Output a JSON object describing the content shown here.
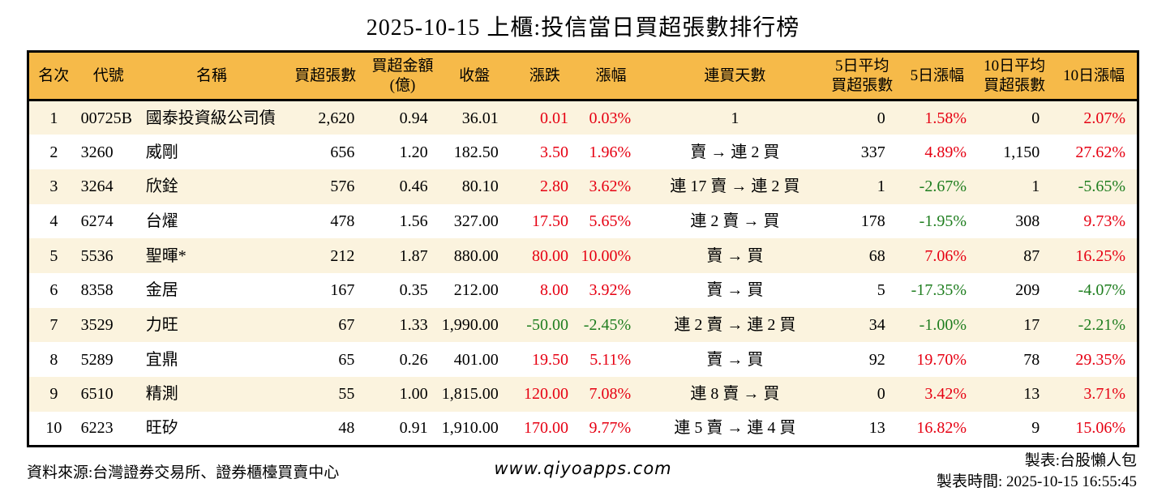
{
  "title": "2025-10-15 上櫃:投信當日買超張數排行榜",
  "colors": {
    "header_bg": "#F6BA49",
    "row_alt_bg": "#FBF3DE",
    "up_red": "#E60012",
    "down_green": "#1E7D1E",
    "border": "#000000"
  },
  "chart_data": {
    "type": "table",
    "title": "2025-10-15 上櫃:投信當日買超張數排行榜",
    "columns": [
      "名次",
      "代號",
      "名稱",
      "買超張數",
      "買超金額\n(億)",
      "收盤",
      "漲跌",
      "漲幅",
      "連買天數",
      "5日平均\n買超張數",
      "5日漲幅",
      "10日平均\n買超張數",
      "10日漲幅"
    ],
    "column_keys": [
      "rank",
      "code",
      "name",
      "buy-volume",
      "buy-amount",
      "close",
      "change",
      "change-pct",
      "buy-streak",
      "avg5-volume",
      "pct5",
      "avg10-volume",
      "pct10"
    ],
    "rows": [
      [
        "1",
        "00725B",
        "國泰投資級公司債",
        "2,620",
        "0.94",
        "36.01",
        "0.01",
        "0.03%",
        "1",
        "0",
        "1.58%",
        "0",
        "2.07%"
      ],
      [
        "2",
        "3260",
        "威剛",
        "656",
        "1.20",
        "182.50",
        "3.50",
        "1.96%",
        "賣 → 連 2 買",
        "337",
        "4.89%",
        "1,150",
        "27.62%"
      ],
      [
        "3",
        "3264",
        "欣銓",
        "576",
        "0.46",
        "80.10",
        "2.80",
        "3.62%",
        "連 17 賣 → 連 2 買",
        "1",
        "-2.67%",
        "1",
        "-5.65%"
      ],
      [
        "4",
        "6274",
        "台燿",
        "478",
        "1.56",
        "327.00",
        "17.50",
        "5.65%",
        "連 2 賣 → 買",
        "178",
        "-1.95%",
        "308",
        "9.73%"
      ],
      [
        "5",
        "5536",
        "聖暉*",
        "212",
        "1.87",
        "880.00",
        "80.00",
        "10.00%",
        "賣 → 買",
        "68",
        "7.06%",
        "87",
        "16.25%"
      ],
      [
        "6",
        "8358",
        "金居",
        "167",
        "0.35",
        "212.00",
        "8.00",
        "3.92%",
        "賣 → 買",
        "5",
        "-17.35%",
        "209",
        "-4.07%"
      ],
      [
        "7",
        "3529",
        "力旺",
        "67",
        "1.33",
        "1,990.00",
        "-50.00",
        "-2.45%",
        "連 2 賣 → 連 2 買",
        "34",
        "-1.00%",
        "17",
        "-2.21%"
      ],
      [
        "8",
        "5289",
        "宜鼎",
        "65",
        "0.26",
        "401.00",
        "19.50",
        "5.11%",
        "賣 → 買",
        "92",
        "19.70%",
        "78",
        "29.35%"
      ],
      [
        "9",
        "6510",
        "精測",
        "55",
        "1.00",
        "1,815.00",
        "120.00",
        "7.08%",
        "連 8 賣 → 買",
        "0",
        "3.42%",
        "13",
        "3.71%"
      ],
      [
        "10",
        "6223",
        "旺矽",
        "48",
        "0.91",
        "1,910.00",
        "170.00",
        "9.77%",
        "連 5 賣 → 連 4 買",
        "13",
        "16.82%",
        "9",
        "15.06%"
      ]
    ],
    "signed_color_columns": [
      6,
      7,
      10,
      12
    ],
    "alignments": [
      "center",
      "left",
      "left",
      "right",
      "right",
      "right",
      "right",
      "right",
      "center",
      "right",
      "right",
      "right",
      "right"
    ],
    "legend": "positive values red, negative values green"
  },
  "footer": {
    "source": "資料來源:台灣證券交易所、證券櫃檯買賣中心",
    "site": "www.qiyoapps.com",
    "author": "製表:台股懶人包",
    "generated_time": "製表時間: 2025-10-15 16:55:45"
  }
}
